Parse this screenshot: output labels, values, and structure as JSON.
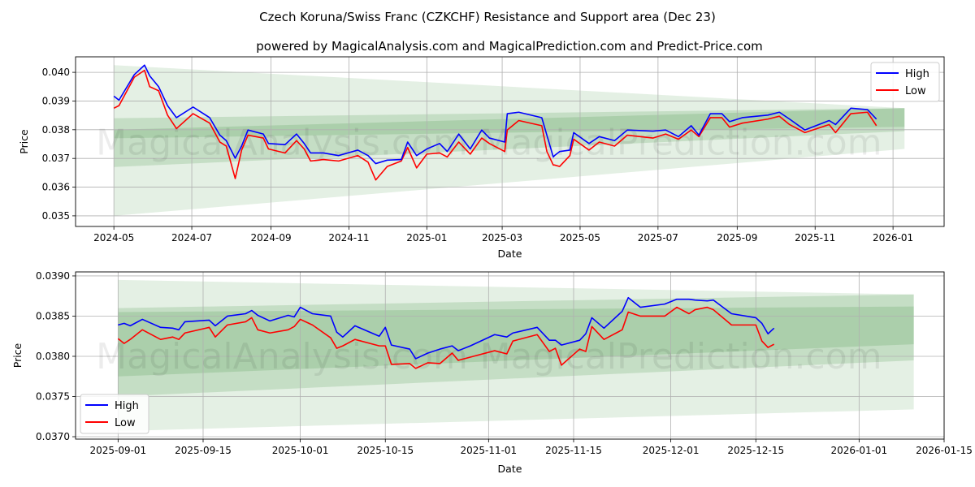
{
  "title": "Czech Koruna/Swiss Franc (CZKCHF) Resistance and Support area (Dec 23)",
  "subtitle": "powered by MagicalAnalysis.com and MagicalPrediction.com and Predict-Price.com",
  "watermark": {
    "left": "MagicalAnalysis.com",
    "right": "MagicalPrediction.com"
  },
  "colors": {
    "high": "#0000ff",
    "low": "#ff0000",
    "band": "#2e8b2e",
    "grid": "#b0b0b0"
  },
  "chart_data": [
    {
      "type": "line",
      "xlabel": "Date",
      "ylabel": "Price",
      "legend": "top-right",
      "grid": true,
      "xlim": [
        "2024-04-01",
        "2026-02-10"
      ],
      "ylim": [
        0.03463,
        0.04054
      ],
      "xticks": [
        "2024-05",
        "2024-07",
        "2024-09",
        "2024-11",
        "2025-01",
        "2025-03",
        "2025-05",
        "2025-07",
        "2025-09",
        "2025-11",
        "2026-01"
      ],
      "xtick_dates": [
        "2024-05-01",
        "2024-07-01",
        "2024-09-01",
        "2024-11-01",
        "2025-01-01",
        "2025-03-01",
        "2025-05-01",
        "2025-07-01",
        "2025-09-01",
        "2025-11-01",
        "2026-01-01"
      ],
      "yticks": [
        "0.035",
        "0.036",
        "0.037",
        "0.038",
        "0.039",
        "0.040"
      ],
      "series_names": {
        "high": "High",
        "low": "Low"
      },
      "points": [
        [
          "2024-05-01",
          0.03917,
          0.03875
        ],
        [
          "2024-05-05",
          0.03903,
          0.03884
        ],
        [
          "2024-05-17",
          0.03992,
          0.03983
        ],
        [
          "2024-05-25",
          0.04025,
          0.04007
        ],
        [
          "2024-05-29",
          0.03988,
          0.0395
        ],
        [
          "2024-06-05",
          0.0395,
          0.03936
        ],
        [
          "2024-06-12",
          0.03884,
          0.03851
        ],
        [
          "2024-06-19",
          0.03842,
          0.03804
        ],
        [
          "2024-07-02",
          0.03879,
          0.03856
        ],
        [
          "2024-07-15",
          0.03842,
          0.03823
        ],
        [
          "2024-07-23",
          0.03781,
          0.03757
        ],
        [
          "2024-07-28",
          0.03762,
          0.03743
        ],
        [
          "2024-08-04",
          0.03701,
          0.0363
        ],
        [
          "2024-08-09",
          0.03743,
          0.03729
        ],
        [
          "2024-08-14",
          0.03799,
          0.03781
        ],
        [
          "2024-08-26",
          0.03785,
          0.03771
        ],
        [
          "2024-08-30",
          0.03752,
          0.03733
        ],
        [
          "2024-09-12",
          0.03748,
          0.03719
        ],
        [
          "2024-09-21",
          0.03785,
          0.03762
        ],
        [
          "2024-09-27",
          0.03752,
          0.03733
        ],
        [
          "2024-10-02",
          0.03719,
          0.03691
        ],
        [
          "2024-10-12",
          0.03719,
          0.03696
        ],
        [
          "2024-10-24",
          0.0371,
          0.03691
        ],
        [
          "2024-11-08",
          0.03729,
          0.0371
        ],
        [
          "2024-11-16",
          0.0371,
          0.03687
        ],
        [
          "2024-11-22",
          0.03682,
          0.03625
        ],
        [
          "2024-12-01",
          0.03694,
          0.03672
        ],
        [
          "2024-12-12",
          0.03696,
          0.03691
        ],
        [
          "2024-12-17",
          0.03757,
          0.03738
        ],
        [
          "2024-12-24",
          0.0371,
          0.03667
        ],
        [
          "2025-01-01",
          0.03733,
          0.03715
        ],
        [
          "2025-01-11",
          0.03752,
          0.03719
        ],
        [
          "2025-01-17",
          0.03724,
          0.03705
        ],
        [
          "2025-01-26",
          0.03785,
          0.03757
        ],
        [
          "2025-02-04",
          0.03733,
          0.03715
        ],
        [
          "2025-02-13",
          0.03799,
          0.03771
        ],
        [
          "2025-02-19",
          0.03771,
          0.03752
        ],
        [
          "2025-03-03",
          0.03757,
          0.03724
        ],
        [
          "2025-03-05",
          0.03856,
          0.03799
        ],
        [
          "2025-03-14",
          0.03861,
          0.03832
        ],
        [
          "2025-04-01",
          0.03842,
          0.03814
        ],
        [
          "2025-04-05",
          0.03781,
          0.03724
        ],
        [
          "2025-04-10",
          0.03705,
          0.03677
        ],
        [
          "2025-04-11",
          0.0371,
          0.03677
        ],
        [
          "2025-04-15",
          0.03724,
          0.03672
        ],
        [
          "2025-04-23",
          0.03729,
          0.0371
        ],
        [
          "2025-04-26",
          0.0379,
          0.03767
        ],
        [
          "2025-05-08",
          0.03752,
          0.03729
        ],
        [
          "2025-05-16",
          0.03776,
          0.03757
        ],
        [
          "2025-05-28",
          0.03762,
          0.03743
        ],
        [
          "2025-06-07",
          0.03799,
          0.03781
        ],
        [
          "2025-06-27",
          0.03795,
          0.03771
        ],
        [
          "2025-07-07",
          0.03799,
          0.03785
        ],
        [
          "2025-07-17",
          0.03776,
          0.03767
        ],
        [
          "2025-07-27",
          0.03814,
          0.03799
        ],
        [
          "2025-08-02",
          0.03781,
          0.03776
        ],
        [
          "2025-08-11",
          0.03856,
          0.03842
        ],
        [
          "2025-08-20",
          0.03856,
          0.03842
        ],
        [
          "2025-08-26",
          0.03828,
          0.03809
        ],
        [
          "2025-09-05",
          0.03842,
          0.03823
        ],
        [
          "2025-09-25",
          0.03851,
          0.03837
        ],
        [
          "2025-10-04",
          0.03861,
          0.03847
        ],
        [
          "2025-10-12",
          0.03837,
          0.03818
        ],
        [
          "2025-10-24",
          0.03799,
          0.0379
        ],
        [
          "2025-11-12",
          0.03832,
          0.03818
        ],
        [
          "2025-11-17",
          0.03818,
          0.0379
        ],
        [
          "2025-11-29",
          0.03875,
          0.03856
        ],
        [
          "2025-12-12",
          0.0387,
          0.03861
        ],
        [
          "2025-12-19",
          0.03837,
          0.03814
        ]
      ],
      "bands": [
        {
          "start": "2024-05-01",
          "end": "2026-01-10",
          "start_range": [
            0.035,
            0.04025
          ],
          "end_range": [
            0.03733,
            0.03875
          ],
          "opacity": 0.13
        },
        {
          "start": "2024-05-01",
          "end": "2026-01-10",
          "start_range": [
            0.0367,
            0.0384
          ],
          "end_range": [
            0.03795,
            0.03875
          ],
          "opacity": 0.17
        },
        {
          "start": "2024-05-01",
          "end": "2026-01-10",
          "start_range": [
            0.0377,
            0.038
          ],
          "end_range": [
            0.0381,
            0.03875
          ],
          "opacity": 0.17
        }
      ]
    },
    {
      "type": "line",
      "xlabel": "Date",
      "ylabel": "Price",
      "legend": "bottom-left",
      "grid": true,
      "xlim": [
        "2025-08-25",
        "2026-01-15"
      ],
      "ylim": [
        0.03697,
        0.03905
      ],
      "xticks": [
        "2025-09-01",
        "2025-09-15",
        "2025-10-01",
        "2025-10-15",
        "2025-11-01",
        "2025-11-15",
        "2025-12-01",
        "2025-12-15",
        "2026-01-01",
        "2026-01-15"
      ],
      "xtick_dates": [
        "2025-09-01",
        "2025-09-15",
        "2025-10-01",
        "2025-10-15",
        "2025-11-01",
        "2025-11-15",
        "2025-12-01",
        "2025-12-15",
        "2026-01-01",
        "2026-01-15"
      ],
      "yticks": [
        "0.0370",
        "0.0375",
        "0.0380",
        "0.0385",
        "0.0390"
      ],
      "series_names": {
        "high": "High",
        "low": "Low"
      },
      "points": [
        [
          "2025-09-01",
          0.03839,
          0.03822
        ],
        [
          "2025-09-02",
          0.03841,
          0.03816
        ],
        [
          "2025-09-03",
          0.03838,
          0.03821
        ],
        [
          "2025-09-05",
          0.03846,
          0.03833
        ],
        [
          "2025-09-08",
          0.03836,
          0.03821
        ],
        [
          "2025-09-10",
          0.03835,
          0.03824
        ],
        [
          "2025-09-11",
          0.03833,
          0.03821
        ],
        [
          "2025-09-12",
          0.03843,
          0.03829
        ],
        [
          "2025-09-16",
          0.03845,
          0.03836
        ],
        [
          "2025-09-17",
          0.03838,
          0.03824
        ],
        [
          "2025-09-19",
          0.0385,
          0.03839
        ],
        [
          "2025-09-22",
          0.03853,
          0.03843
        ],
        [
          "2025-09-23",
          0.03857,
          0.03848
        ],
        [
          "2025-09-24",
          0.03851,
          0.03833
        ],
        [
          "2025-09-26",
          0.03844,
          0.03829
        ],
        [
          "2025-09-29",
          0.03851,
          0.03833
        ],
        [
          "2025-09-30",
          0.03849,
          0.03837
        ],
        [
          "2025-10-01",
          0.03861,
          0.03846
        ],
        [
          "2025-10-03",
          0.03853,
          0.03839
        ],
        [
          "2025-10-06",
          0.0385,
          0.03823
        ],
        [
          "2025-10-07",
          0.0383,
          0.0381
        ],
        [
          "2025-10-08",
          0.03824,
          0.03813
        ],
        [
          "2025-10-10",
          0.03838,
          0.03821
        ],
        [
          "2025-10-14",
          0.03825,
          0.03813
        ],
        [
          "2025-10-15",
          0.03836,
          0.03813
        ],
        [
          "2025-10-16",
          0.03814,
          0.0379
        ],
        [
          "2025-10-19",
          0.03809,
          0.03791
        ],
        [
          "2025-10-20",
          0.03797,
          0.03785
        ],
        [
          "2025-10-22",
          0.03804,
          0.03792
        ],
        [
          "2025-10-24",
          0.03809,
          0.03791
        ],
        [
          "2025-10-26",
          0.03813,
          0.03804
        ],
        [
          "2025-10-27",
          0.03807,
          0.03795
        ],
        [
          "2025-10-29",
          0.03813,
          0.03799
        ],
        [
          "2025-11-02",
          0.03827,
          0.03807
        ],
        [
          "2025-11-04",
          0.03824,
          0.03803
        ],
        [
          "2025-11-05",
          0.03829,
          0.03819
        ],
        [
          "2025-11-09",
          0.03836,
          0.03827
        ],
        [
          "2025-11-11",
          0.0382,
          0.03806
        ],
        [
          "2025-11-12",
          0.0382,
          0.0381
        ],
        [
          "2025-11-13",
          0.03814,
          0.03789
        ],
        [
          "2025-11-16",
          0.0382,
          0.03809
        ],
        [
          "2025-11-17",
          0.03828,
          0.03806
        ],
        [
          "2025-11-18",
          0.03848,
          0.03837
        ],
        [
          "2025-11-20",
          0.03835,
          0.03821
        ],
        [
          "2025-11-23",
          0.03856,
          0.03833
        ],
        [
          "2025-11-24",
          0.03873,
          0.03855
        ],
        [
          "2025-11-26",
          0.03861,
          0.0385
        ],
        [
          "2025-11-30",
          0.03865,
          0.0385
        ],
        [
          "2025-12-02",
          0.03871,
          0.03861
        ],
        [
          "2025-12-04",
          0.03871,
          0.03853
        ],
        [
          "2025-12-05",
          0.0387,
          0.03858
        ],
        [
          "2025-12-07",
          0.03869,
          0.03861
        ],
        [
          "2025-12-08",
          0.0387,
          0.03858
        ],
        [
          "2025-12-11",
          0.03853,
          0.03839
        ],
        [
          "2025-12-15",
          0.03848,
          0.03839
        ],
        [
          "2025-12-16",
          0.03841,
          0.03819
        ],
        [
          "2025-12-17",
          0.03828,
          0.03811
        ],
        [
          "2025-12-18",
          0.03835,
          0.03815
        ]
      ],
      "bands": [
        {
          "start": "2025-09-01",
          "end": "2026-01-10",
          "start_range": [
            0.03707,
            0.03895
          ],
          "end_range": [
            0.03734,
            0.03877
          ],
          "opacity": 0.13
        },
        {
          "start": "2025-09-01",
          "end": "2026-01-10",
          "start_range": [
            0.0375,
            0.0386
          ],
          "end_range": [
            0.03795,
            0.03877
          ],
          "opacity": 0.17
        },
        {
          "start": "2025-09-01",
          "end": "2026-01-10",
          "start_range": [
            0.03775,
            0.03855
          ],
          "end_range": [
            0.03815,
            0.03862
          ],
          "opacity": 0.17
        }
      ]
    }
  ]
}
